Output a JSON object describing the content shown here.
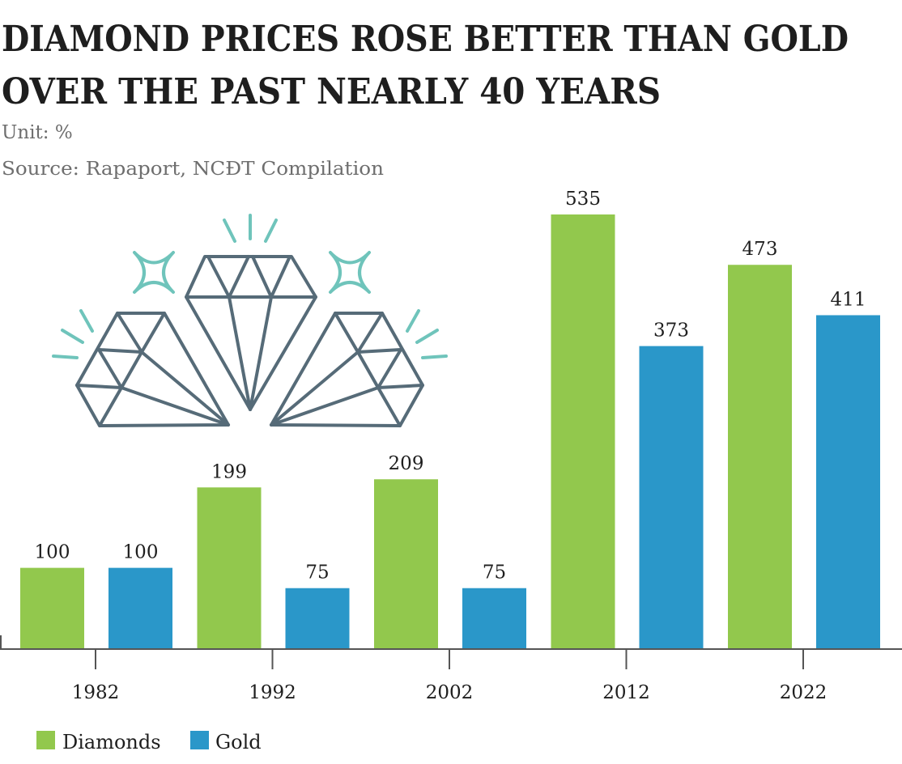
{
  "chart_data": {
    "type": "bar",
    "title_lines": [
      "DIAMOND PRICES ROSE BETTER THAN GOLD",
      "OVER THE PAST NEARLY 40 YEARS"
    ],
    "unit": "Unit: %",
    "source": "Source: Rapaport, NCĐT Compilation",
    "categories": [
      "1982",
      "1992",
      "2002",
      "2012",
      "2022"
    ],
    "series": [
      {
        "name": "Diamonds",
        "color": "#92c84d",
        "values": [
          100,
          199,
          209,
          535,
          473
        ]
      },
      {
        "name": "Gold",
        "color": "#2a97c9",
        "values": [
          100,
          75,
          75,
          373,
          411
        ]
      }
    ],
    "ylim": [
      0,
      540
    ],
    "grid": false,
    "legend_position": "bottom-left",
    "decoration": "diamond-illustration"
  }
}
